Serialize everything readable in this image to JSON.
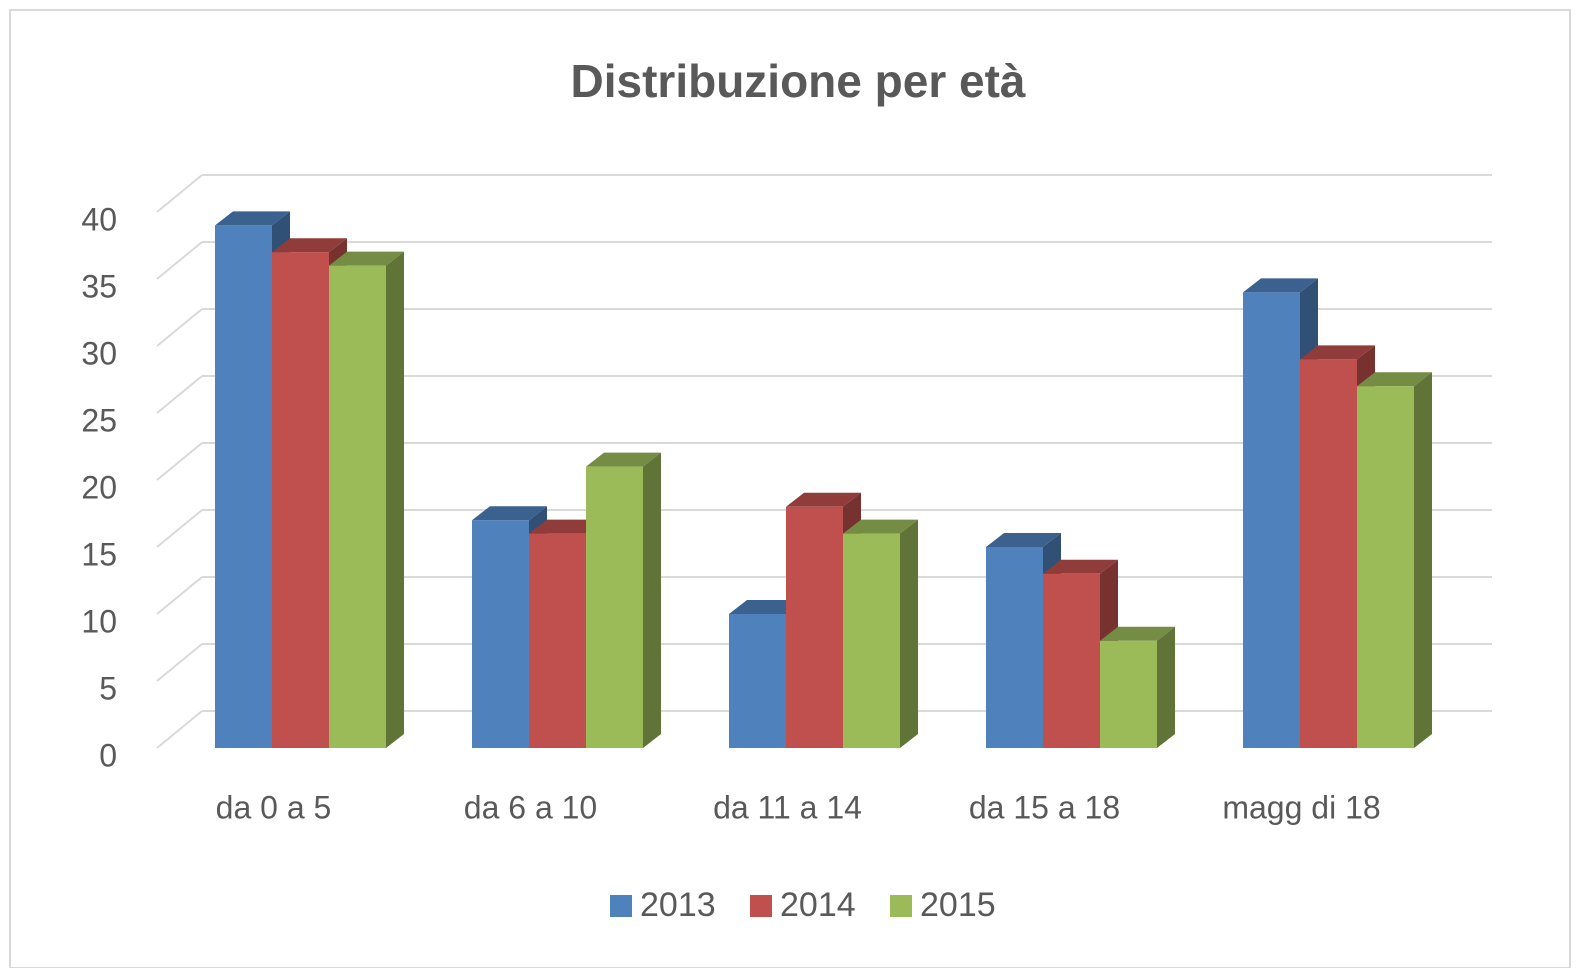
{
  "chart_data": {
    "type": "bar3d",
    "title": "Distribuzione per età",
    "categories": [
      "da 0 a 5",
      "da 6 a 10",
      "da 11 a 14",
      "da 15 a 18",
      "magg di 18"
    ],
    "series": [
      {
        "name": "2013",
        "color": "#4f81bd",
        "values": [
          39,
          17,
          10,
          15,
          34
        ]
      },
      {
        "name": "2014",
        "color": "#c0504d",
        "values": [
          37,
          16,
          18,
          13,
          29
        ]
      },
      {
        "name": "2015",
        "color": "#9bbb59",
        "values": [
          36,
          21,
          16,
          8,
          27
        ]
      }
    ],
    "ylim": [
      0,
      40
    ],
    "yticks": [
      0,
      5,
      10,
      15,
      20,
      25,
      30,
      35,
      40
    ],
    "grid": true,
    "legend": "bottom"
  }
}
